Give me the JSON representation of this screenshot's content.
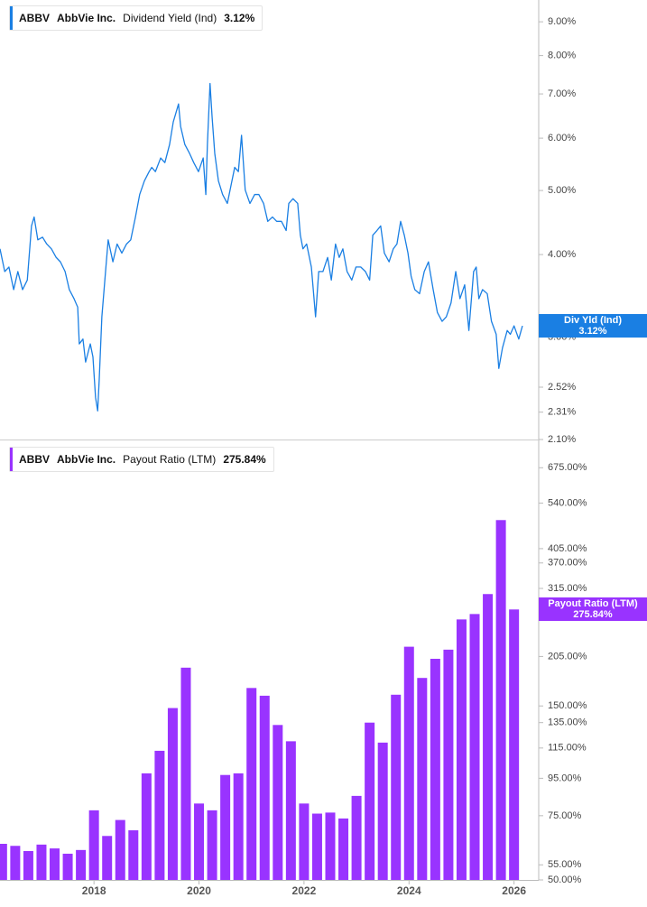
{
  "chart_data": [
    {
      "type": "line",
      "yscale": "log",
      "color": "#1a7fe3",
      "legend": {
        "ticker": "ABBV",
        "company": "AbbVie Inc.",
        "metric": "Dividend Yield (Ind)",
        "value_label": "3.12%"
      },
      "callout": {
        "name": "Div Yld (Ind)",
        "value_label": "3.12%"
      },
      "xlim": [
        2016.21,
        2026.47
      ],
      "ylim": [
        2.1,
        9.71
      ],
      "yticks": [
        {
          "value": 9,
          "label": "9.00%"
        },
        {
          "value": 8,
          "label": "8.00%"
        },
        {
          "value": 7,
          "label": "7.00%"
        },
        {
          "value": 6,
          "label": "6.00%"
        },
        {
          "value": 5,
          "label": "5.00%"
        },
        {
          "value": 4,
          "label": "4.00%"
        },
        {
          "value": 3,
          "label": "3.00%"
        },
        {
          "value": 2.52,
          "label": "2.52%"
        },
        {
          "value": 2.31,
          "label": "2.31%"
        },
        {
          "value": 2.1,
          "label": "2.10%"
        }
      ],
      "x": [
        2016.21,
        2016.3,
        2016.38,
        2016.47,
        2016.55,
        2016.64,
        2016.73,
        2016.81,
        2016.86,
        2016.93,
        2017.02,
        2017.1,
        2017.19,
        2017.28,
        2017.36,
        2017.45,
        2017.53,
        2017.62,
        2017.69,
        2017.72,
        2017.79,
        2017.84,
        2017.93,
        2017.98,
        2018.03,
        2018.07,
        2018.1,
        2018.15,
        2018.22,
        2018.27,
        2018.36,
        2018.44,
        2018.53,
        2018.62,
        2018.7,
        2018.79,
        2018.87,
        2018.96,
        2019.05,
        2019.1,
        2019.17,
        2019.27,
        2019.35,
        2019.44,
        2019.51,
        2019.56,
        2019.61,
        2019.65,
        2019.73,
        2019.82,
        2019.9,
        2019.99,
        2020.08,
        2020.13,
        2020.16,
        2020.21,
        2020.25,
        2020.3,
        2020.37,
        2020.45,
        2020.54,
        2020.61,
        2020.68,
        2020.75,
        2020.81,
        2020.88,
        2020.97,
        2021.06,
        2021.14,
        2021.23,
        2021.31,
        2021.4,
        2021.48,
        2021.57,
        2021.66,
        2021.71,
        2021.79,
        2021.88,
        2021.93,
        2021.98,
        2022.05,
        2022.14,
        2022.22,
        2022.28,
        2022.36,
        2022.45,
        2022.52,
        2022.6,
        2022.67,
        2022.74,
        2022.82,
        2022.91,
        2022.99,
        2023.08,
        2023.17,
        2023.25,
        2023.31,
        2023.39,
        2023.46,
        2023.53,
        2023.62,
        2023.7,
        2023.77,
        2023.84,
        2023.91,
        2023.98,
        2024.04,
        2024.11,
        2024.2,
        2024.29,
        2024.37,
        2024.46,
        2024.54,
        2024.63,
        2024.71,
        2024.8,
        2024.89,
        2024.97,
        2025.06,
        2025.14,
        2025.23,
        2025.28,
        2025.33,
        2025.4,
        2025.49,
        2025.57,
        2025.66,
        2025.71,
        2025.78,
        2025.87,
        2025.93,
        2026.0,
        2026.09,
        2026.16
      ],
      "values": [
        4.08,
        3.77,
        3.83,
        3.54,
        3.77,
        3.54,
        3.66,
        4.42,
        4.56,
        4.21,
        4.25,
        4.15,
        4.08,
        3.96,
        3.9,
        3.77,
        3.54,
        3.43,
        3.33,
        2.93,
        2.98,
        2.75,
        2.93,
        2.8,
        2.43,
        2.32,
        2.59,
        3.22,
        3.77,
        4.21,
        3.9,
        4.15,
        4.02,
        4.15,
        4.21,
        4.56,
        4.93,
        5.17,
        5.34,
        5.42,
        5.34,
        5.6,
        5.51,
        5.87,
        6.35,
        6.55,
        6.76,
        6.25,
        5.87,
        5.69,
        5.51,
        5.34,
        5.6,
        4.93,
        5.87,
        7.26,
        6.45,
        5.69,
        5.17,
        4.93,
        4.78,
        5.09,
        5.42,
        5.34,
        6.06,
        5.01,
        4.78,
        4.93,
        4.93,
        4.78,
        4.49,
        4.56,
        4.49,
        4.49,
        4.35,
        4.78,
        4.86,
        4.78,
        4.28,
        4.08,
        4.15,
        3.83,
        3.22,
        3.77,
        3.77,
        3.96,
        3.66,
        4.15,
        3.96,
        4.08,
        3.77,
        3.66,
        3.83,
        3.83,
        3.77,
        3.66,
        4.28,
        4.35,
        4.42,
        4.02,
        3.9,
        4.08,
        4.15,
        4.49,
        4.28,
        4.02,
        3.71,
        3.54,
        3.49,
        3.77,
        3.9,
        3.54,
        3.27,
        3.17,
        3.22,
        3.38,
        3.77,
        3.43,
        3.6,
        3.07,
        3.77,
        3.83,
        3.43,
        3.54,
        3.49,
        3.17,
        3.03,
        2.69,
        2.89,
        3.07,
        3.03,
        3.12,
        2.98,
        3.12
      ]
    },
    {
      "type": "bar",
      "yscale": "log",
      "color": "#9933ff",
      "legend": {
        "ticker": "ABBV",
        "company": "AbbVie Inc.",
        "metric": "Payout Ratio (LTM)",
        "value_label": "275.84%"
      },
      "callout": {
        "name": "Payout Ratio (LTM)",
        "value_label": "275.84%"
      },
      "xlim": [
        2016.21,
        2026.47
      ],
      "xticks": [
        2018,
        2020,
        2022,
        2024,
        2026
      ],
      "ylim": [
        50,
        793
      ],
      "yticks": [
        {
          "value": 675,
          "label": "675.00%"
        },
        {
          "value": 540,
          "label": "540.00%"
        },
        {
          "value": 405,
          "label": "405.00%"
        },
        {
          "value": 370,
          "label": "370.00%"
        },
        {
          "value": 315,
          "label": "315.00%"
        },
        {
          "value": 205,
          "label": "205.00%"
        },
        {
          "value": 150,
          "label": "150.00%"
        },
        {
          "value": 135,
          "label": "135.00%"
        },
        {
          "value": 115,
          "label": "115.00%"
        },
        {
          "value": 95,
          "label": "95.00%"
        },
        {
          "value": 75,
          "label": "75.00%"
        },
        {
          "value": 55,
          "label": "55.00%"
        },
        {
          "value": 50,
          "label": "50.00%"
        }
      ],
      "x": [
        2016.25,
        2016.5,
        2016.75,
        2017.0,
        2017.25,
        2017.5,
        2017.75,
        2018.0,
        2018.25,
        2018.5,
        2018.75,
        2019.0,
        2019.25,
        2019.5,
        2019.75,
        2020.0,
        2020.25,
        2020.5,
        2020.75,
        2021.0,
        2021.25,
        2021.5,
        2021.75,
        2022.0,
        2022.25,
        2022.5,
        2022.75,
        2023.0,
        2023.25,
        2023.5,
        2023.75,
        2024.0,
        2024.25,
        2024.5,
        2024.75,
        2025.0,
        2025.25,
        2025.5,
        2025.75,
        2026.0
      ],
      "values": [
        62.8,
        62,
        60,
        62.5,
        61,
        59,
        60.4,
        77.6,
        66,
        73,
        68.4,
        98,
        113,
        148,
        191,
        81,
        77.6,
        97,
        98,
        168,
        160,
        133,
        120,
        81,
        76,
        76.5,
        73.7,
        85,
        135,
        119,
        161,
        218,
        179,
        202,
        214,
        259,
        268,
        304,
        485,
        275.84
      ]
    }
  ]
}
